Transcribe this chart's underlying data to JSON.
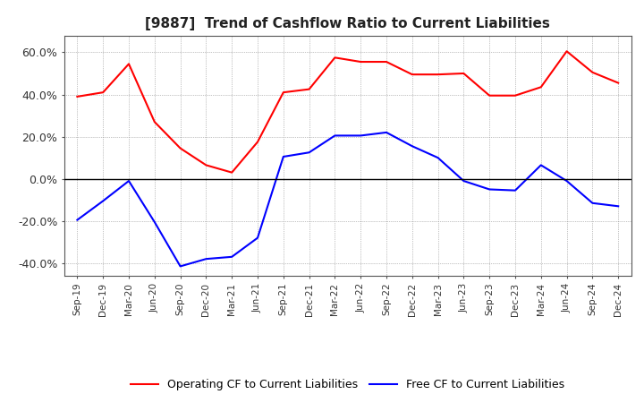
{
  "title": "[9887]  Trend of Cashflow Ratio to Current Liabilities",
  "x_labels": [
    "Sep-19",
    "Dec-19",
    "Mar-20",
    "Jun-20",
    "Sep-20",
    "Dec-20",
    "Mar-21",
    "Jun-21",
    "Sep-21",
    "Dec-21",
    "Mar-22",
    "Jun-22",
    "Sep-22",
    "Dec-22",
    "Mar-23",
    "Jun-23",
    "Sep-23",
    "Dec-23",
    "Mar-24",
    "Jun-24",
    "Sep-24",
    "Dec-24"
  ],
  "operating_cf": [
    0.39,
    0.41,
    0.545,
    0.27,
    0.145,
    0.065,
    0.03,
    0.175,
    0.41,
    0.425,
    0.575,
    0.555,
    0.555,
    0.495,
    0.495,
    0.5,
    0.395,
    0.395,
    0.435,
    0.605,
    0.505,
    0.455
  ],
  "free_cf": [
    -0.195,
    -0.105,
    -0.01,
    -0.205,
    -0.415,
    -0.38,
    -0.37,
    -0.28,
    0.105,
    0.125,
    0.205,
    0.205,
    0.22,
    0.155,
    0.1,
    -0.01,
    -0.05,
    -0.055,
    0.065,
    -0.01,
    -0.115,
    -0.13
  ],
  "operating_color": "#FF0000",
  "free_color": "#0000FF",
  "ylim": [
    -0.46,
    0.68
  ],
  "yticks": [
    -0.4,
    -0.2,
    0.0,
    0.2,
    0.4,
    0.6
  ],
  "ytick_labels": [
    "-40.0%",
    "-20.0%",
    "0.0%",
    "20.0%",
    "40.0%",
    "60.0%"
  ],
  "background_color": "#FFFFFF",
  "grid_color": "#888888",
  "legend_labels": [
    "Operating CF to Current Liabilities",
    "Free CF to Current Liabilities"
  ]
}
